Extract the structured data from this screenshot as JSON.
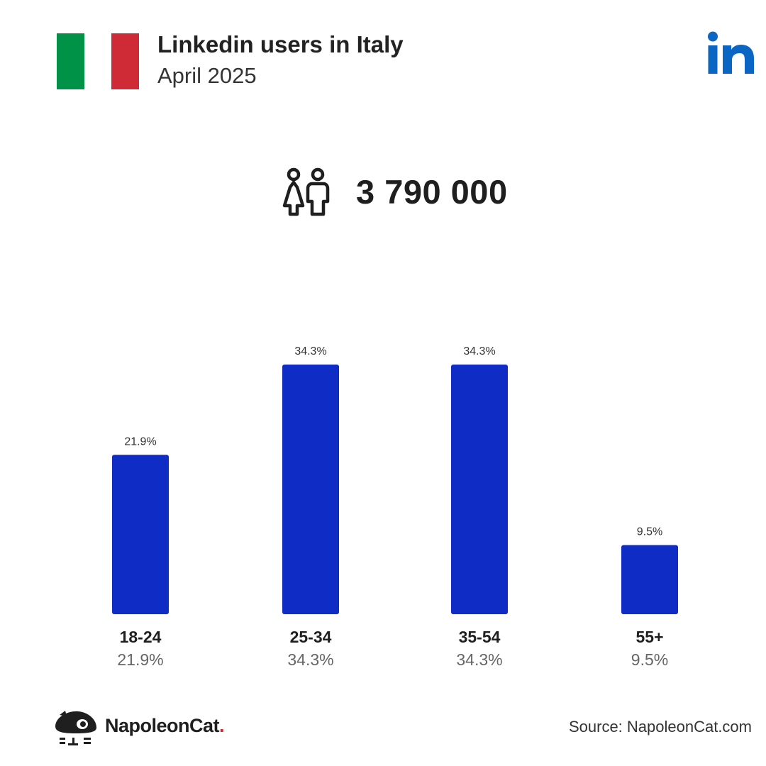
{
  "header": {
    "title": "Linkedin users in Italy",
    "subtitle": "April 2025",
    "logo_text": "in",
    "flag_colors": [
      "#009246",
      "#ffffff",
      "#ce2b37"
    ]
  },
  "total": {
    "icon": "people-icon",
    "value": "3 790 000"
  },
  "chart_data": {
    "type": "bar",
    "categories": [
      "18-24",
      "25-34",
      "35-54",
      "55+"
    ],
    "values": [
      21.9,
      34.3,
      34.3,
      9.5
    ],
    "value_labels": [
      "21.9%",
      "34.3%",
      "34.3%",
      "9.5%"
    ],
    "ylim": [
      0,
      34.3
    ],
    "bar_color": "#0f2cc4",
    "grid": false
  },
  "footer": {
    "brand": "NapoleonCat",
    "brand_dot": ".",
    "source": "Source: NapoleonCat.com",
    "brand_dot_color": "#d6262f"
  },
  "colors": {
    "linkedin_blue": "#0a66c2",
    "text": "#1f1f1f"
  }
}
